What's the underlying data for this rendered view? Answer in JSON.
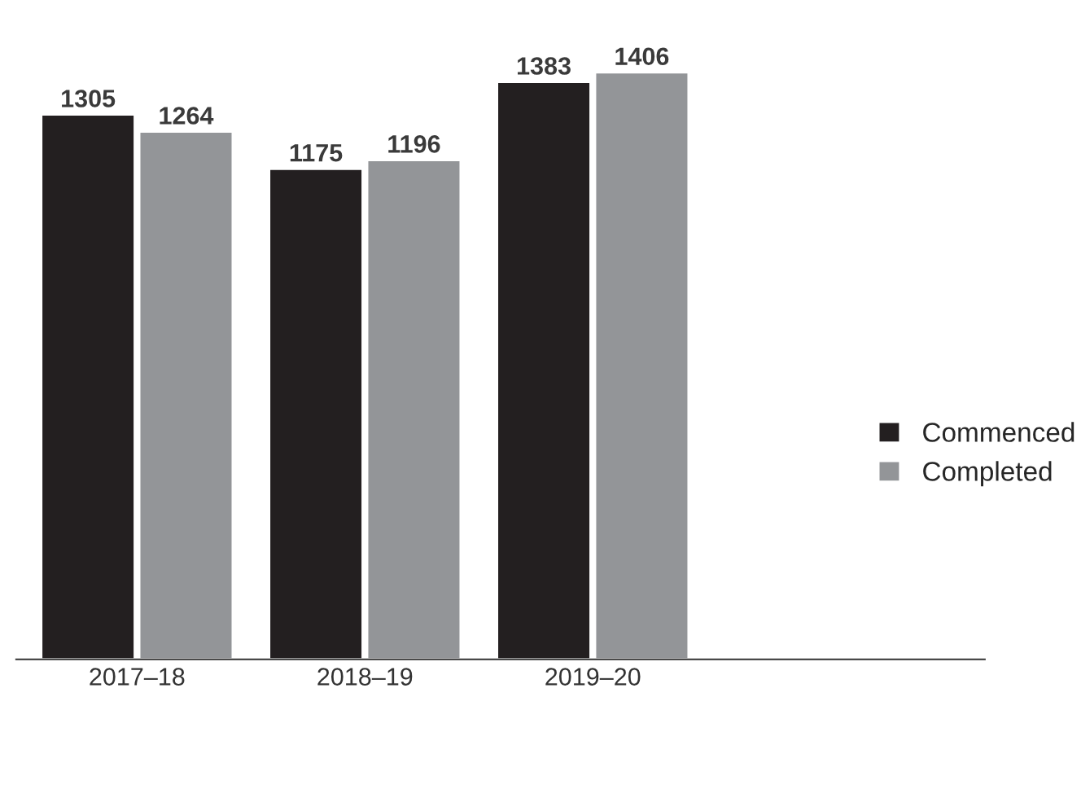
{
  "chart_data": {
    "type": "bar",
    "categories": [
      "2017–18",
      "2018–19",
      "2019–20"
    ],
    "series": [
      {
        "name": "Commenced",
        "color": "#231f20",
        "values": [
          1305,
          1175,
          1383
        ]
      },
      {
        "name": "Completed",
        "color": "#939598",
        "values": [
          1264,
          1196,
          1406
        ]
      }
    ],
    "data_labels": true,
    "legend": "right",
    "tick_labels": "x",
    "grid": false
  }
}
